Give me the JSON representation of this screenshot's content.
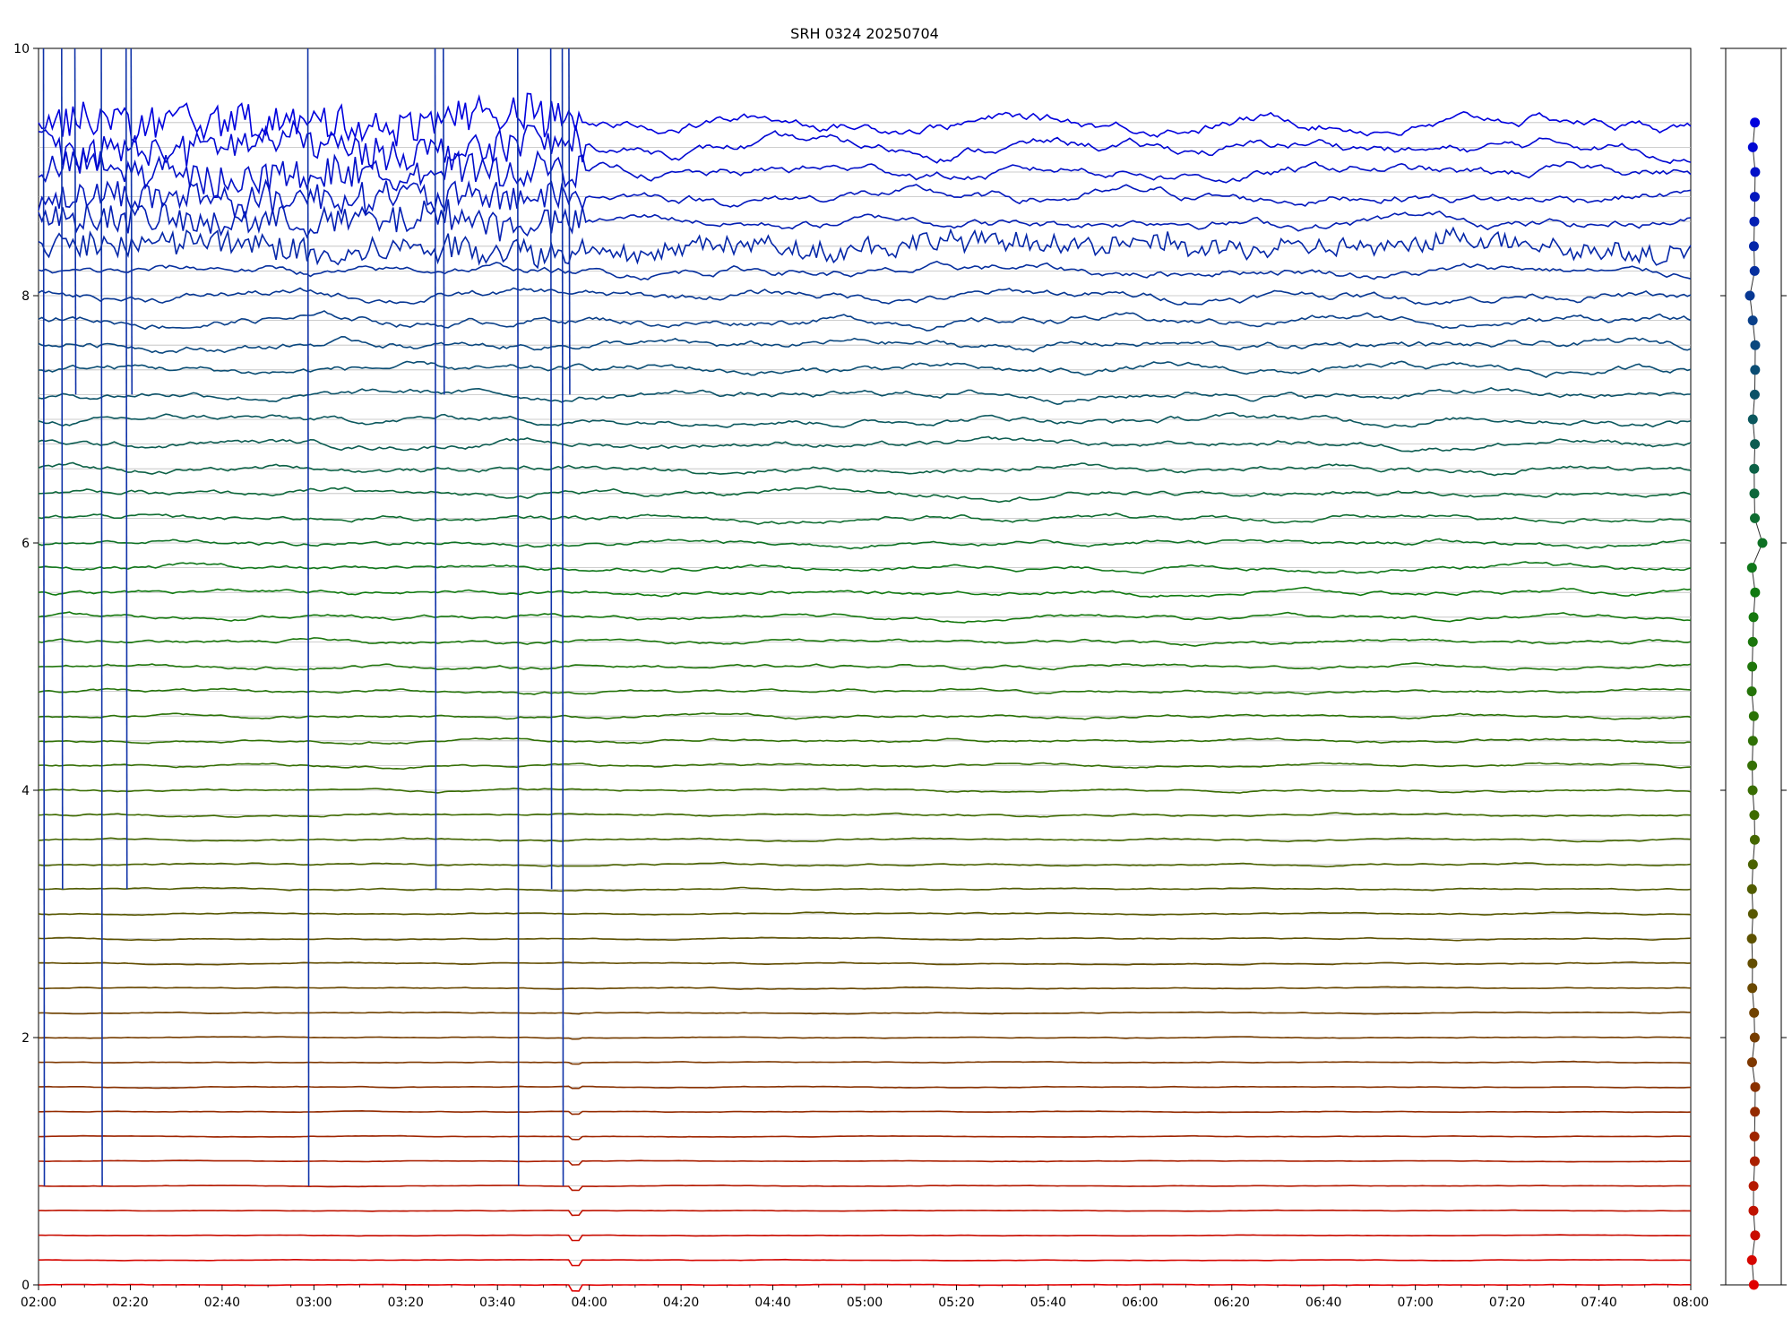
{
  "chart_data": [
    {
      "type": "line",
      "title": "SRH 0324 20250704",
      "xlabel": "",
      "ylabel": "",
      "x_range": [
        "02:00",
        "08:00"
      ],
      "ylim": [
        0,
        10
      ],
      "x_ticks": [
        "02:00",
        "02:20",
        "02:40",
        "03:00",
        "03:20",
        "03:40",
        "04:00",
        "04:20",
        "04:40",
        "05:00",
        "05:20",
        "05:40",
        "06:00",
        "06:20",
        "06:40",
        "07:00",
        "07:20",
        "07:40",
        "08:00"
      ],
      "y_ticks": [
        "0",
        "2",
        "4",
        "6",
        "8",
        "10"
      ],
      "grid": "horizontal reference line at each trace baseline",
      "legend": "none",
      "series_count": 48,
      "series_spacing": 0.2,
      "color_gradient": [
        "#e00000",
        "#7a3a00",
        "#3f6b00",
        "#0f7a10",
        "#0a4a7a",
        "#0000dd"
      ],
      "notes_visible": "Lower traces (red) are nearly flat; upper traces (blue) show strong oscillations and large spikes before 04:00."
    },
    {
      "type": "scatter",
      "title": "",
      "y_range": [
        0,
        10
      ],
      "points_count": 48,
      "description": "Side panel: one dot per trace, colored like the trace, aligned vertically with trace baselines."
    }
  ]
}
